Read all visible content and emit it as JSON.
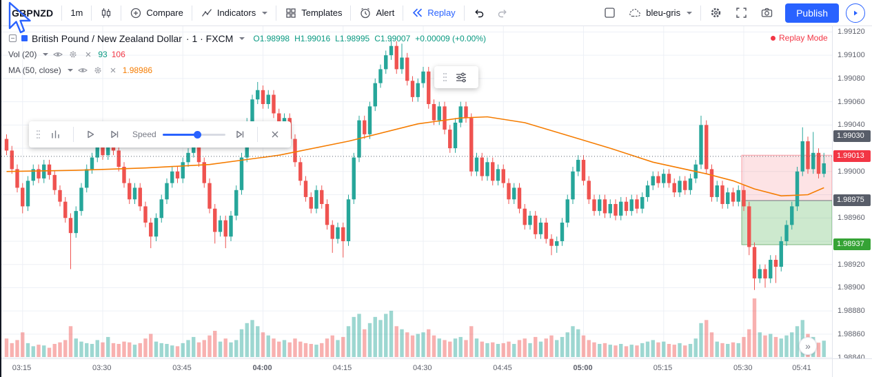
{
  "toolbar": {
    "symbol": "GBPNZD",
    "interval": "1m",
    "compare_label": "Compare",
    "indicators_label": "Indicators",
    "templates_label": "Templates",
    "alert_label": "Alert",
    "replay_label": "Replay",
    "layout_name": "bleu-gris",
    "publish_label": "Publish"
  },
  "legend": {
    "series_title": "British Pound / New Zealand Dollar",
    "series_meta": "· 1 · FXCM",
    "ohlc": {
      "o_label": "O",
      "o_value": "1.98998",
      "h_label": "H",
      "h_value": "1.99016",
      "l_label": "L",
      "l_value": "1.98995",
      "c_label": "C",
      "c_value": "1.99007",
      "change": "+0.00009 (+0.00%)"
    },
    "vol": {
      "label": "Vol (20)",
      "value1": "93",
      "value2": "106"
    },
    "ma": {
      "label": "MA (50, close)",
      "value": "1.98986"
    }
  },
  "replay_mode": {
    "label": "Replay Mode"
  },
  "replay_toolbar": {
    "speed_label": "Speed"
  },
  "scroll_button": {
    "glyph": "»"
  },
  "price_axis": {
    "labels": [
      "1.99120",
      "1.99100",
      "1.99080",
      "1.99060",
      "1.99040",
      "1.99000",
      "1.98960",
      "1.98920",
      "1.98900",
      "1.98880",
      "1.98860",
      "1.98840"
    ],
    "badges": [
      {
        "value": "1.99030",
        "color": "#585d69"
      },
      {
        "value": "1.99013",
        "color": "#f23645"
      },
      {
        "value": "1.98975",
        "color": "#585d69"
      },
      {
        "value": "1.98937",
        "color": "#35a335"
      }
    ]
  },
  "colors": {
    "up": "#26a69a",
    "down": "#ef5350",
    "vol_up": "rgba(38,166,154,0.45)",
    "vol_down": "rgba(239,83,80,0.45)",
    "ma": "#f57c00",
    "grid": "#edf0f6",
    "accent": "#2962ff",
    "teal_text": "#089981",
    "red_text": "#f23645",
    "zone_red_fill": "rgba(242,54,69,0.14)",
    "zone_red_border": "rgba(242,54,69,0.45)",
    "zone_green_fill": "rgba(76,175,80,0.28)",
    "zone_green_border": "rgba(56,142,60,0.6)",
    "price_line": "#56606c"
  },
  "chart_data": {
    "type": "candlestick",
    "symbol": "GBPNZD",
    "title": "British Pound / New Zealand Dollar, 1 minute, FXCM",
    "interval_minutes": 1,
    "start_time": "03:12",
    "ylim": [
      1.9884,
      1.99125
    ],
    "price_step": 0.0002,
    "grid": {
      "top": 1.9912,
      "step": 0.0002,
      "count": 15
    },
    "time_ticks": [
      {
        "label": "03:15",
        "index": 3,
        "grid": true,
        "major": false
      },
      {
        "label": "03:30",
        "index": 18,
        "grid": true,
        "major": false
      },
      {
        "label": "03:45",
        "index": 33,
        "grid": true,
        "major": false
      },
      {
        "label": "04:00",
        "index": 48,
        "grid": true,
        "major": true
      },
      {
        "label": "04:15",
        "index": 63,
        "grid": true,
        "major": false
      },
      {
        "label": "04:30",
        "index": 78,
        "grid": true,
        "major": false
      },
      {
        "label": "04:45",
        "index": 93,
        "grid": true,
        "major": false
      },
      {
        "label": "05:00",
        "index": 108,
        "grid": true,
        "major": true
      },
      {
        "label": "05:15",
        "index": 123,
        "grid": true,
        "major": false
      },
      {
        "label": "05:30",
        "index": 138,
        "grid": true,
        "major": false
      },
      {
        "label": "05:41",
        "index": 149,
        "grid": false,
        "major": false
      }
    ],
    "first_open": 1.99028,
    "open_rule": "previous_close",
    "default_wick": 4e-05,
    "closes": [
      1.99018,
      1.99002,
      1.98986,
      1.9897,
      1.98992,
      1.99002,
      1.98994,
      1.99006,
      1.98997,
      1.98984,
      1.98974,
      1.9896,
      1.98947,
      1.98966,
      1.98986,
      1.99002,
      1.99012,
      1.99022,
      1.99014,
      1.99027,
      1.99018,
      1.99004,
      1.9899,
      1.98976,
      1.98986,
      1.9897,
      1.98956,
      1.98944,
      1.9896,
      1.98976,
      1.9899,
      1.99,
      1.98994,
      1.99008,
      1.99016,
      1.99024,
      1.99008,
      1.9899,
      1.98968,
      1.98948,
      1.98958,
      1.98944,
      1.98962,
      1.98984,
      1.99012,
      1.99042,
      1.99062,
      1.9907,
      1.99058,
      1.99066,
      1.9905,
      1.99036,
      1.99046,
      1.99028,
      1.99008,
      1.98992,
      1.98978,
      1.98968,
      1.98984,
      1.98972,
      1.98954,
      1.98942,
      1.98952,
      1.9894,
      1.98976,
      1.99012,
      1.99044,
      1.99032,
      1.99056,
      1.99076,
      1.99088,
      1.991,
      1.99108,
      1.99088,
      1.99098,
      1.99078,
      1.99064,
      1.99076,
      1.99086,
      1.99058,
      1.99044,
      1.99056,
      1.99036,
      1.9902,
      1.99042,
      1.99056,
      1.99046,
      1.99,
      1.99012,
      1.98996,
      1.99008,
      1.98992,
      1.99002,
      1.9899,
      1.98976,
      1.98986,
      1.98968,
      1.98954,
      1.98962,
      1.98946,
      1.98956,
      1.98942,
      1.98936,
      1.9894,
      1.98956,
      1.98976,
      1.99,
      1.9901,
      1.98992,
      1.98976,
      1.98966,
      1.98976,
      1.98964,
      1.98972,
      1.98962,
      1.98974,
      1.98966,
      1.98976,
      1.98968,
      1.98978,
      1.98988,
      1.98996,
      1.9899,
      1.98998,
      1.9899,
      1.98982,
      1.98992,
      1.98984,
      1.98994,
      1.99006,
      1.9904,
      1.99002,
      1.98978,
      1.98988,
      1.98972,
      1.98982,
      1.98974,
      1.98984,
      1.9897,
      1.98935,
      1.98908,
      1.98916,
      1.98908,
      1.98924,
      1.98918,
      1.9894,
      1.98954,
      1.9897,
      1.99,
      1.99026,
      1.99002,
      1.99016,
      1.98998,
      1.99007
    ],
    "wick_overrides": {
      "3": [
        null,
        1.98964
      ],
      "12": [
        null,
        1.98916
      ],
      "19": [
        1.99034,
        null
      ],
      "27": [
        null,
        1.98934
      ],
      "35": [
        1.99032,
        null
      ],
      "39": [
        null,
        1.98938
      ],
      "41": [
        null,
        1.98934
      ],
      "47": [
        1.99077,
        null
      ],
      "61": [
        null,
        1.9893
      ],
      "63": [
        null,
        1.98926
      ],
      "72": [
        1.99114,
        null
      ],
      "74": [
        1.9911,
        null
      ],
      "102": [
        null,
        1.98928
      ],
      "103": [
        null,
        1.9893
      ],
      "130": [
        1.99048,
        null
      ],
      "139": [
        null,
        1.98928
      ],
      "140": [
        null,
        1.98898
      ],
      "142": [
        null,
        1.989
      ],
      "144": [
        null,
        1.98904
      ],
      "149": [
        1.99038,
        null
      ],
      "151": [
        1.99034,
        null
      ],
      "153": [
        1.99016,
        1.98995
      ]
    },
    "volumes": [
      120,
      90,
      110,
      160,
      90,
      70,
      80,
      75,
      60,
      85,
      95,
      110,
      200,
      120,
      100,
      90,
      85,
      110,
      95,
      130,
      90,
      85,
      100,
      95,
      80,
      90,
      120,
      150,
      100,
      90,
      85,
      75,
      70,
      90,
      110,
      130,
      95,
      110,
      140,
      170,
      100,
      120,
      95,
      110,
      180,
      220,
      240,
      200,
      160,
      140,
      120,
      100,
      110,
      95,
      120,
      100,
      90,
      85,
      80,
      90,
      120,
      140,
      110,
      130,
      200,
      260,
      280,
      180,
      220,
      260,
      240,
      280,
      300,
      200,
      180,
      160,
      140,
      150,
      160,
      180,
      140,
      120,
      110,
      100,
      120,
      130,
      110,
      200,
      120,
      100,
      90,
      95,
      85,
      90,
      100,
      85,
      110,
      120,
      90,
      130,
      100,
      120,
      140,
      110,
      130,
      160,
      200,
      180,
      140,
      110,
      95,
      85,
      90,
      80,
      75,
      85,
      70,
      80,
      75,
      90,
      100,
      110,
      95,
      100,
      85,
      80,
      90,
      75,
      85,
      120,
      220,
      240,
      160,
      100,
      90,
      85,
      95,
      90,
      130,
      180,
      380,
      160,
      140,
      150,
      130,
      120,
      140,
      160,
      200,
      240,
      150,
      130,
      93,
      106
    ],
    "ma_period": 50,
    "ma_points": [
      [
        0,
        1.99
      ],
      [
        13,
        1.99001
      ],
      [
        26,
        1.99003
      ],
      [
        38,
        1.99006
      ],
      [
        51,
        1.99014
      ],
      [
        64,
        1.99026
      ],
      [
        77,
        1.99041
      ],
      [
        85,
        1.99046
      ],
      [
        90,
        1.99047
      ],
      [
        97,
        1.99042
      ],
      [
        105,
        1.99031
      ],
      [
        113,
        1.9902
      ],
      [
        121,
        1.99008
      ],
      [
        131,
        1.98998
      ],
      [
        136,
        1.98992
      ],
      [
        140,
        1.98985
      ],
      [
        145,
        1.98979
      ],
      [
        150,
        1.9898
      ],
      [
        153,
        1.98986
      ]
    ],
    "position_tool": {
      "from_index": 138,
      "entry": 1.98975,
      "stop": 1.99014,
      "target": 1.98937
    },
    "current_price": 1.99013
  }
}
